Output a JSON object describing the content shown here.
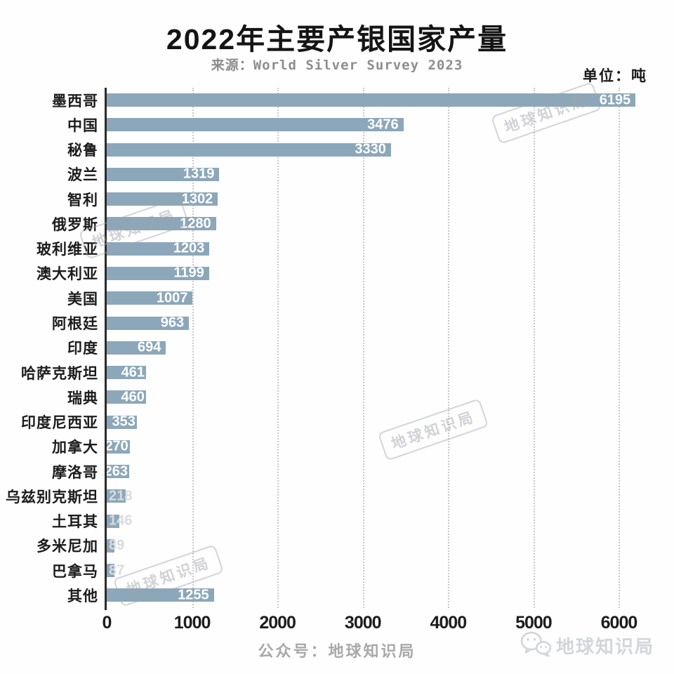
{
  "header": {
    "title": "2022年主要产银国家产量",
    "source": "来源：World Silver Survey 2023",
    "unit": "单位：吨"
  },
  "chart_data": {
    "type": "bar",
    "orientation": "horizontal",
    "title": "2022年主要产银国家产量",
    "source": "来源：World Silver Survey 2023",
    "unit": "单位：吨",
    "categories": [
      "墨西哥",
      "中国",
      "秘鲁",
      "波兰",
      "智利",
      "俄罗斯",
      "玻利维亚",
      "澳大利亚",
      "美国",
      "阿根廷",
      "印度",
      "哈萨克斯坦",
      "瑞典",
      "印度尼西亚",
      "加拿大",
      "摩洛哥",
      "乌兹别克斯坦",
      "土耳其",
      "多米尼加",
      "巴拿马",
      "其他"
    ],
    "values": [
      6195,
      3476,
      3330,
      1319,
      1302,
      1280,
      1203,
      1199,
      1007,
      963,
      694,
      461,
      460,
      353,
      270,
      263,
      218,
      146,
      89,
      87,
      1255
    ],
    "x_ticks": [
      0,
      1000,
      2000,
      3000,
      4000,
      5000,
      6000
    ],
    "xlim": [
      0,
      6580
    ],
    "xlabel": "",
    "ylabel": "",
    "grid": "vertical-dotted",
    "legend": "none",
    "bar_color": "#8CA7B9",
    "value_label_color": "#ffffff"
  },
  "watermarks": {
    "stamp": "地球知识局"
  },
  "footer": {
    "caption": "公众号：地球知识局",
    "logo_text": "地球知识局",
    "logo_icon": "wechat-icon"
  }
}
